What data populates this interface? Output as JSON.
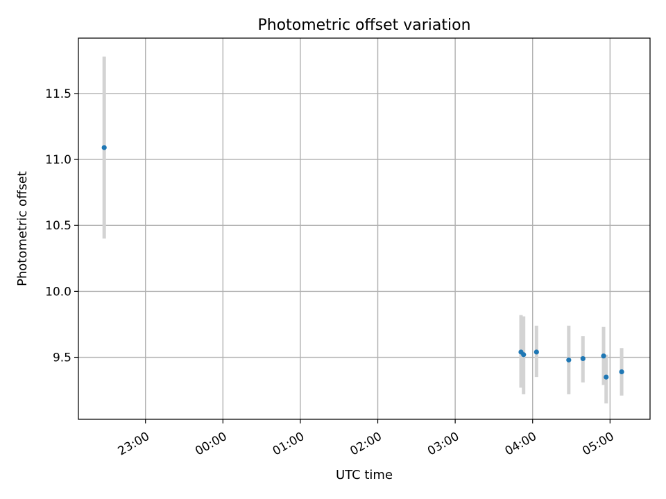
{
  "chart_data": {
    "type": "scatter",
    "title": "Photometric offset variation",
    "xlabel": "UTC time",
    "ylabel": "Photometric offset",
    "xlim": [
      "22:08",
      "05:31"
    ],
    "ylim": [
      9.03,
      11.92
    ],
    "x_ticks": [
      "23:00",
      "00:00",
      "01:00",
      "02:00",
      "03:00",
      "04:00",
      "05:00"
    ],
    "y_ticks": [
      9.5,
      10.0,
      10.5,
      11.0,
      11.5
    ],
    "y_tick_labels": [
      "9.5",
      "10.0",
      "10.5",
      "11.0",
      "11.5"
    ],
    "grid": true,
    "colors": {
      "points": "#1f77b4",
      "errorbars": "#d3d3d3",
      "grid": "#b0b0b0"
    },
    "points": [
      {
        "x": "22:28",
        "y": 11.09,
        "yerr_low": 10.4,
        "yerr_high": 11.78
      },
      {
        "x": "03:51",
        "y": 9.54,
        "yerr_low": 9.27,
        "yerr_high": 9.82
      },
      {
        "x": "03:53",
        "y": 9.52,
        "yerr_low": 9.22,
        "yerr_high": 9.81
      },
      {
        "x": "04:03",
        "y": 9.54,
        "yerr_low": 9.35,
        "yerr_high": 9.74
      },
      {
        "x": "04:28",
        "y": 9.48,
        "yerr_low": 9.22,
        "yerr_high": 9.74
      },
      {
        "x": "04:39",
        "y": 9.49,
        "yerr_low": 9.31,
        "yerr_high": 9.66
      },
      {
        "x": "04:55",
        "y": 9.51,
        "yerr_low": 9.29,
        "yerr_high": 9.73
      },
      {
        "x": "04:57",
        "y": 9.35,
        "yerr_low": 9.15,
        "yerr_high": 9.52
      },
      {
        "x": "05:09",
        "y": 9.39,
        "yerr_low": 9.21,
        "yerr_high": 9.57
      }
    ]
  }
}
